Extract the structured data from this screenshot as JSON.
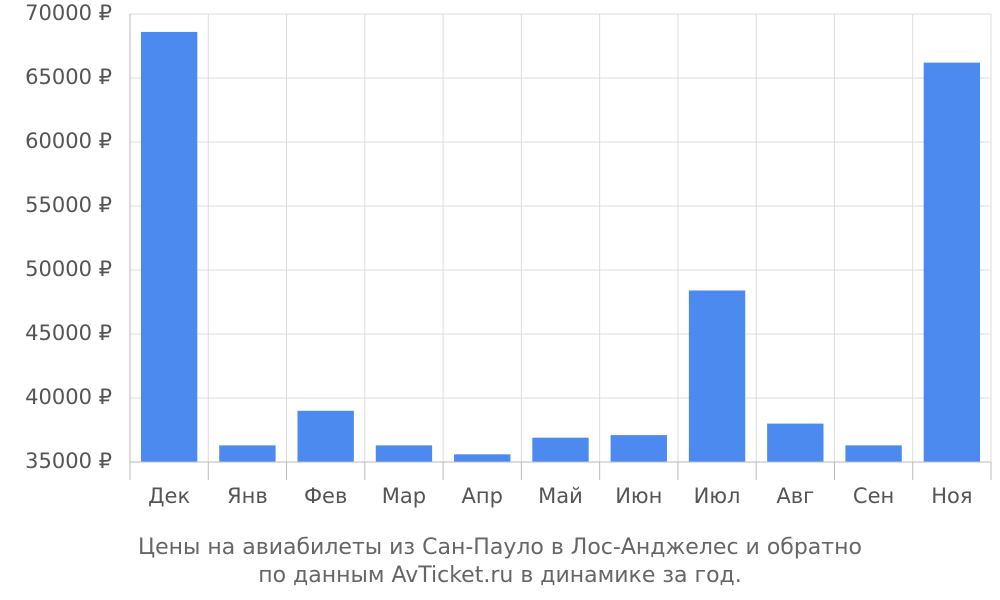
{
  "chart_data": {
    "type": "bar",
    "title": [
      "Цены на авиабилеты из Сан-Пауло в Лос-Анджелес и обратно",
      "по данным AvTicket.ru в динамике за год."
    ],
    "categories": [
      "Дек",
      "Янв",
      "Фев",
      "Мар",
      "Апр",
      "Май",
      "Июн",
      "Июл",
      "Авг",
      "Сен",
      "Ноя"
    ],
    "values": [
      68600,
      36300,
      39000,
      36300,
      35600,
      36900,
      37100,
      48400,
      38000,
      36300,
      66200
    ],
    "color": "#4d8af0",
    "ylim": [
      35000,
      70000
    ],
    "yticks": [
      {
        "value": 35000,
        "label": "35000 ₽"
      },
      {
        "value": 40000,
        "label": "40000 ₽"
      },
      {
        "value": 45000,
        "label": "45000 ₽"
      },
      {
        "value": 50000,
        "label": "50000 ₽"
      },
      {
        "value": 55000,
        "label": "55000 ₽"
      },
      {
        "value": 60000,
        "label": "60000 ₽"
      },
      {
        "value": 65000,
        "label": "65000 ₽"
      },
      {
        "value": 70000,
        "label": "70000 ₽"
      }
    ],
    "grid": true
  }
}
